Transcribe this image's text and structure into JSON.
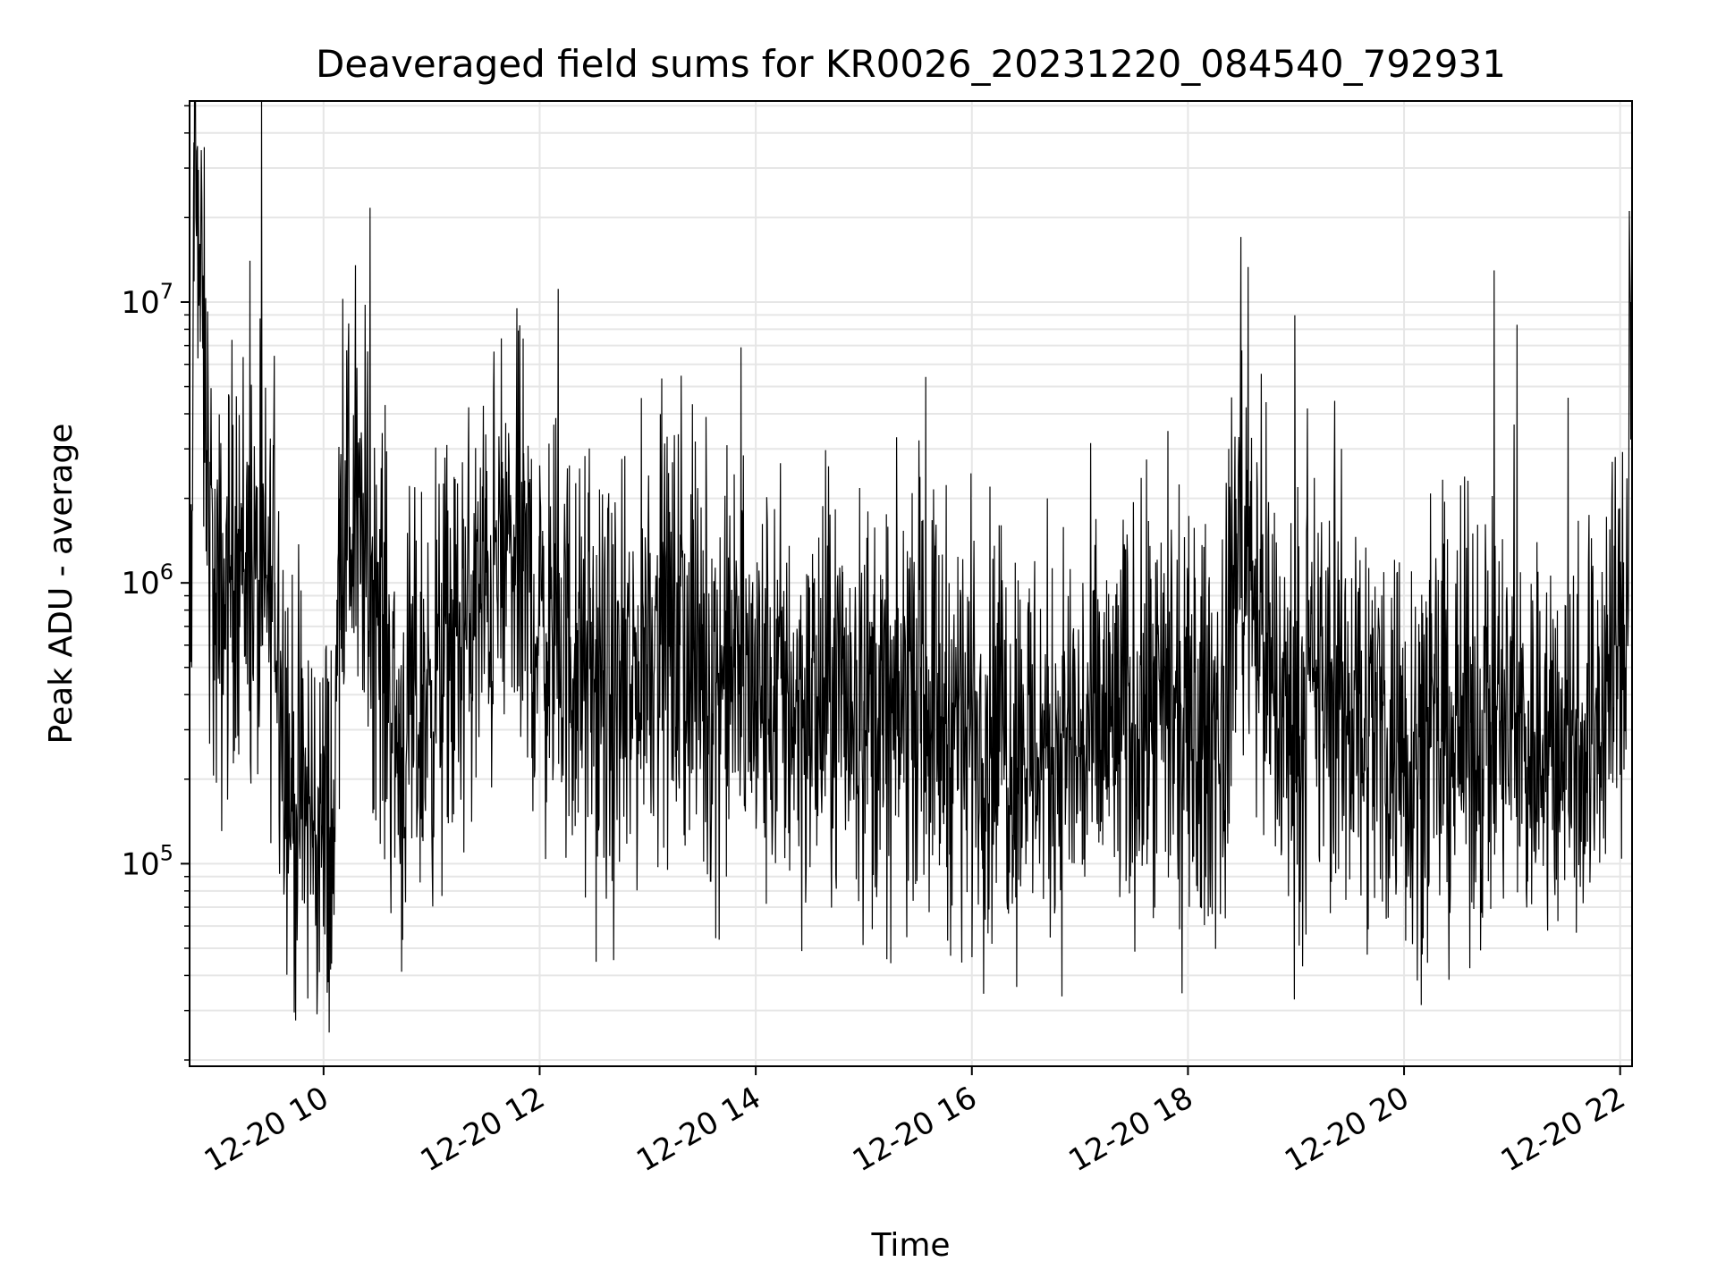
{
  "chart_data": {
    "type": "line",
    "title": "Deaveraged field sums for KR0026_20231220_084540_792931",
    "xlabel": "Time",
    "ylabel": "Peak ADU - average",
    "yscale": "log",
    "ylim": [
      19000,
      52000000
    ],
    "xlim_hours": [
      8.76,
      22.11
    ],
    "x_ticks": [
      {
        "hour": 10,
        "label": "12-20 10"
      },
      {
        "hour": 12,
        "label": "12-20 12"
      },
      {
        "hour": 14,
        "label": "12-20 14"
      },
      {
        "hour": 16,
        "label": "12-20 16"
      },
      {
        "hour": 18,
        "label": "12-20 18"
      },
      {
        "hour": 20,
        "label": "12-20 20"
      },
      {
        "hour": 22,
        "label": "12-20 22"
      }
    ],
    "y_ticks": [
      {
        "value": 100000,
        "base": "10",
        "exp": "5"
      },
      {
        "value": 1000000,
        "base": "10",
        "exp": "6"
      },
      {
        "value": 10000000,
        "base": "10",
        "exp": "7"
      }
    ],
    "grid": true,
    "line_color": "#000000",
    "grid_color": "#e6e6e6",
    "series": [
      {
        "name": "Peak ADU - average",
        "x_hours": [
          8.78,
          8.8,
          9.0,
          9.2,
          9.4,
          9.55,
          9.7,
          9.9,
          10.1,
          10.15,
          10.3,
          10.5,
          10.7,
          10.9,
          11.0,
          11.2,
          11.5,
          11.7,
          11.85,
          12.0,
          12.2,
          12.5,
          12.8,
          13.0,
          13.3,
          13.5,
          13.8,
          14.0,
          14.3,
          14.5,
          14.8,
          15.0,
          15.3,
          15.45,
          15.7,
          16.0,
          16.3,
          16.6,
          16.85,
          17.0,
          17.3,
          17.6,
          17.8,
          18.0,
          18.2,
          18.35,
          18.45,
          18.6,
          18.8,
          19.0,
          19.2,
          19.5,
          19.8,
          20.0,
          20.25,
          20.5,
          20.8,
          21.0,
          21.15,
          21.3,
          21.5,
          21.7,
          21.8,
          21.95,
          22.05,
          22.1
        ],
        "values": [
          500000,
          37000000,
          600000,
          1500000,
          800000,
          1000000,
          170000,
          140000,
          120000,
          2000000,
          1500000,
          900000,
          250000,
          350000,
          450000,
          550000,
          900000,
          1300000,
          1100000,
          700000,
          600000,
          400000,
          330000,
          700000,
          600000,
          450000,
          500000,
          380000,
          400000,
          350000,
          400000,
          380000,
          300000,
          500000,
          350000,
          320000,
          300000,
          270000,
          280000,
          260000,
          300000,
          330000,
          310000,
          250000,
          300000,
          320000,
          1500000,
          1200000,
          350000,
          300000,
          420000,
          350000,
          300000,
          280000,
          260000,
          300000,
          320000,
          300000,
          260000,
          270000,
          280000,
          300000,
          350000,
          600000,
          500000,
          10000000
        ]
      }
    ]
  }
}
